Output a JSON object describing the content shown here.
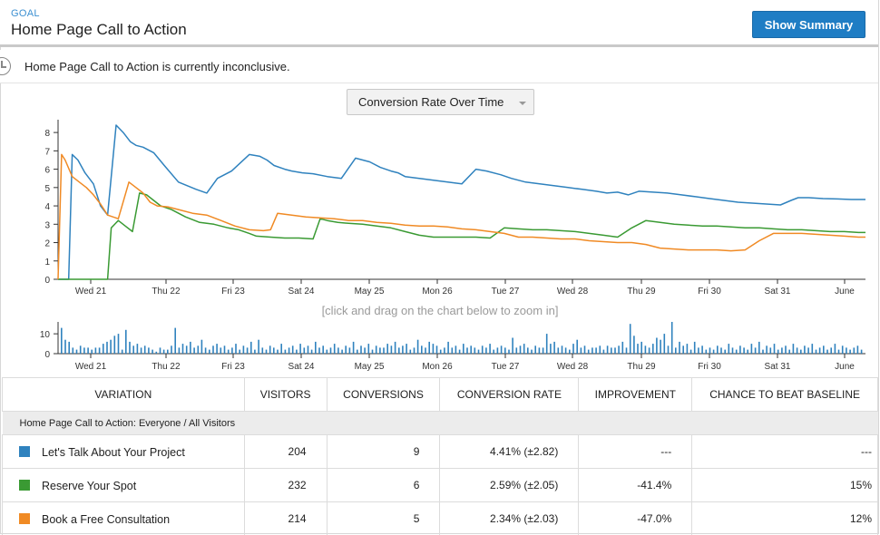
{
  "header": {
    "goal_label": "GOAL",
    "title": "Home Page Call to Action",
    "summary_button": "Show Summary"
  },
  "status": {
    "text": "Home Page Call to Action is currently inconclusive."
  },
  "chart_select": {
    "label": "Conversion Rate Over Time"
  },
  "zoom_hint": "[click and drag on the chart below to zoom in]",
  "colors": {
    "blue": "#2f82be",
    "green": "#3a9a33",
    "orange": "#f08a24",
    "button": "#1f7dc4",
    "link": "#3b8fd1"
  },
  "chart_data": [
    {
      "type": "line",
      "xlabel": "",
      "ylabel": "",
      "x_ticks": [
        "Wed 21",
        "Thu 22",
        "Fri 23",
        "Sat 24",
        "May 25",
        "Mon 26",
        "Tue 27",
        "Wed 28",
        "Thu 29",
        "Fri 30",
        "Sat 31",
        "June"
      ],
      "y_ticks": [
        0,
        1,
        2,
        3,
        4,
        5,
        6,
        7,
        8
      ],
      "xlim": [
        0,
        11.4
      ],
      "ylim": [
        0,
        8.5
      ],
      "grid": false,
      "series": [
        {
          "color": "#2f82be",
          "x": [
            0,
            0.15,
            0.2,
            0.28,
            0.38,
            0.5,
            0.6,
            0.7,
            0.82,
            0.92,
            1.02,
            1.1,
            1.2,
            1.35,
            1.5,
            1.7,
            1.95,
            2.1,
            2.25,
            2.45,
            2.7,
            2.85,
            2.95,
            3.05,
            3.2,
            3.3,
            3.45,
            3.6,
            3.8,
            4.0,
            4.2,
            4.4,
            4.55,
            4.7,
            4.8,
            4.9,
            5.1,
            5.3,
            5.5,
            5.7,
            5.9,
            6.05,
            6.25,
            6.4,
            6.6,
            6.8,
            7.0,
            7.2,
            7.4,
            7.6,
            7.75,
            7.9,
            8.05,
            8.2,
            8.4,
            8.6,
            8.8,
            9.0,
            9.2,
            9.4,
            9.6,
            9.8,
            10.0,
            10.2,
            10.35,
            10.45,
            10.6,
            10.8,
            11.0,
            11.2,
            11.4
          ],
          "y": [
            0,
            0,
            6.8,
            6.5,
            5.8,
            5.2,
            4.0,
            3.5,
            8.4,
            8.0,
            7.5,
            7.3,
            7.2,
            6.9,
            6.2,
            5.3,
            4.9,
            4.7,
            5.5,
            5.9,
            6.8,
            6.7,
            6.5,
            6.2,
            6.0,
            5.9,
            5.8,
            5.75,
            5.6,
            5.5,
            6.6,
            6.4,
            6.1,
            5.9,
            5.8,
            5.6,
            5.5,
            5.4,
            5.3,
            5.2,
            6.0,
            5.9,
            5.7,
            5.5,
            5.3,
            5.2,
            5.1,
            5.0,
            4.9,
            4.8,
            4.7,
            4.75,
            4.6,
            4.8,
            4.75,
            4.7,
            4.6,
            4.5,
            4.4,
            4.3,
            4.2,
            4.15,
            4.1,
            4.05,
            4.3,
            4.45,
            4.45,
            4.4,
            4.38,
            4.35,
            4.35
          ]
        },
        {
          "color": "#3a9a33",
          "x": [
            0,
            0.7,
            0.75,
            0.85,
            0.95,
            1.05,
            1.15,
            1.25,
            1.35,
            1.45,
            1.6,
            1.8,
            2.0,
            2.2,
            2.4,
            2.55,
            2.7,
            2.8,
            3.0,
            3.2,
            3.4,
            3.6,
            3.7,
            3.8,
            3.95,
            4.1,
            4.3,
            4.5,
            4.7,
            4.9,
            5.1,
            5.3,
            5.5,
            5.7,
            5.9,
            6.1,
            6.3,
            6.5,
            6.7,
            6.9,
            7.1,
            7.3,
            7.5,
            7.7,
            7.9,
            8.1,
            8.3,
            8.5,
            8.7,
            8.9,
            9.1,
            9.3,
            9.5,
            9.7,
            9.9,
            10.1,
            10.3,
            10.5,
            10.7,
            10.9,
            11.1,
            11.3,
            11.4
          ],
          "y": [
            0,
            0,
            2.8,
            3.2,
            2.9,
            2.6,
            4.7,
            4.6,
            4.3,
            4.0,
            3.8,
            3.4,
            3.1,
            3.0,
            2.8,
            2.7,
            2.5,
            2.35,
            2.3,
            2.25,
            2.25,
            2.2,
            3.3,
            3.2,
            3.1,
            3.05,
            3.0,
            2.9,
            2.8,
            2.6,
            2.4,
            2.3,
            2.3,
            2.3,
            2.3,
            2.25,
            2.8,
            2.75,
            2.7,
            2.7,
            2.65,
            2.6,
            2.5,
            2.4,
            2.3,
            2.8,
            3.2,
            3.1,
            3.0,
            2.95,
            2.9,
            2.9,
            2.85,
            2.8,
            2.8,
            2.75,
            2.7,
            2.7,
            2.65,
            2.6,
            2.6,
            2.55,
            2.55
          ]
        },
        {
          "color": "#f08a24",
          "x": [
            0,
            0.05,
            0.1,
            0.2,
            0.3,
            0.4,
            0.5,
            0.6,
            0.7,
            0.85,
            1.0,
            1.1,
            1.2,
            1.3,
            1.4,
            1.55,
            1.7,
            1.9,
            2.1,
            2.3,
            2.5,
            2.7,
            2.9,
            3.0,
            3.1,
            3.3,
            3.5,
            3.7,
            3.9,
            4.1,
            4.3,
            4.5,
            4.7,
            4.9,
            5.1,
            5.3,
            5.5,
            5.7,
            5.9,
            6.1,
            6.3,
            6.5,
            6.7,
            6.9,
            7.1,
            7.3,
            7.5,
            7.7,
            7.9,
            8.1,
            8.3,
            8.5,
            8.7,
            8.9,
            9.1,
            9.3,
            9.5,
            9.7,
            9.9,
            10.1,
            10.3,
            10.5,
            10.7,
            10.9,
            11.1,
            11.3,
            11.4
          ],
          "y": [
            0,
            6.8,
            6.5,
            5.6,
            5.3,
            5.0,
            4.6,
            4.1,
            3.5,
            3.3,
            5.3,
            5.0,
            4.7,
            4.2,
            4.0,
            3.95,
            3.8,
            3.6,
            3.5,
            3.2,
            2.9,
            2.7,
            2.65,
            2.7,
            3.6,
            3.5,
            3.4,
            3.35,
            3.3,
            3.2,
            3.2,
            3.1,
            3.05,
            2.95,
            2.9,
            2.9,
            2.85,
            2.75,
            2.7,
            2.6,
            2.5,
            2.3,
            2.3,
            2.25,
            2.2,
            2.2,
            2.1,
            2.05,
            2.0,
            2.0,
            1.9,
            1.7,
            1.65,
            1.6,
            1.6,
            1.6,
            1.55,
            1.6,
            2.1,
            2.5,
            2.5,
            2.5,
            2.45,
            2.4,
            2.35,
            2.3,
            2.3
          ]
        }
      ]
    },
    {
      "type": "bar",
      "xlabel": "",
      "ylabel": "",
      "x_ticks": [
        "Wed 21",
        "Thu 22",
        "Fri 23",
        "Sat 24",
        "May 25",
        "Mon 26",
        "Tue 27",
        "Wed 28",
        "Thu 29",
        "Fri 30",
        "Sat 31",
        "June"
      ],
      "y_ticks": [
        0,
        10
      ],
      "ylim": [
        0,
        16
      ],
      "values": [
        13,
        7,
        6,
        3,
        2,
        4,
        3,
        3,
        2,
        3,
        3,
        5,
        6,
        7,
        9,
        10,
        2,
        12,
        6,
        4,
        5,
        3,
        4,
        3,
        2,
        1,
        3,
        2,
        2,
        4,
        13,
        3,
        5,
        4,
        6,
        3,
        4,
        7,
        3,
        2,
        4,
        5,
        3,
        4,
        2,
        3,
        5,
        2,
        4,
        3,
        6,
        2,
        7,
        3,
        2,
        4,
        3,
        2,
        5,
        2,
        3,
        4,
        2,
        5,
        3,
        4,
        2,
        6,
        3,
        4,
        2,
        3,
        5,
        3,
        2,
        4,
        3,
        6,
        2,
        4,
        3,
        5,
        2,
        4,
        3,
        3,
        5,
        4,
        6,
        3,
        4,
        5,
        2,
        3,
        7,
        4,
        3,
        6,
        5,
        4,
        2,
        3,
        6,
        3,
        4,
        2,
        5,
        3,
        4,
        3,
        2,
        4,
        3,
        5,
        2,
        3,
        4,
        3,
        2,
        8,
        3,
        4,
        5,
        3,
        2,
        4,
        3,
        3,
        10,
        5,
        6,
        3,
        4,
        3,
        2,
        5,
        7,
        3,
        4,
        2,
        3,
        3,
        4,
        2,
        4,
        3,
        3,
        4,
        6,
        3,
        15,
        9,
        5,
        6,
        4,
        3,
        5,
        8,
        7,
        10,
        4,
        16,
        3,
        6,
        4,
        5,
        2,
        6,
        3,
        4,
        2,
        3,
        2,
        4,
        3,
        2,
        5,
        3,
        2,
        4,
        3,
        2,
        5,
        3,
        6,
        2,
        4,
        3,
        5,
        2,
        3,
        4,
        2,
        5,
        3,
        2,
        4,
        3,
        5,
        2,
        3,
        4,
        2,
        3,
        5,
        2,
        4,
        3,
        2,
        3,
        4,
        2
      ]
    }
  ],
  "table": {
    "headers": [
      "VARIATION",
      "VISITORS",
      "CONVERSIONS",
      "CONVERSION RATE",
      "IMPROVEMENT",
      "CHANCE TO BEAT BASELINE"
    ],
    "group_label": "Home Page Call to Action: Everyone / All Visitors",
    "rows": [
      {
        "color": "#2f82be",
        "name": "Let's Talk About Your Project",
        "visitors": "204",
        "conversions": "9",
        "rate": "4.41% (±2.82)",
        "improvement": "---",
        "chance": "---"
      },
      {
        "color": "#3a9a33",
        "name": "Reserve Your Spot",
        "visitors": "232",
        "conversions": "6",
        "rate": "2.59% (±2.05)",
        "improvement": "-41.4%",
        "chance": "15%"
      },
      {
        "color": "#f08a24",
        "name": "Book a Free Consultation",
        "visitors": "214",
        "conversions": "5",
        "rate": "2.34% (±2.03)",
        "improvement": "-47.0%",
        "chance": "12%"
      }
    ]
  }
}
